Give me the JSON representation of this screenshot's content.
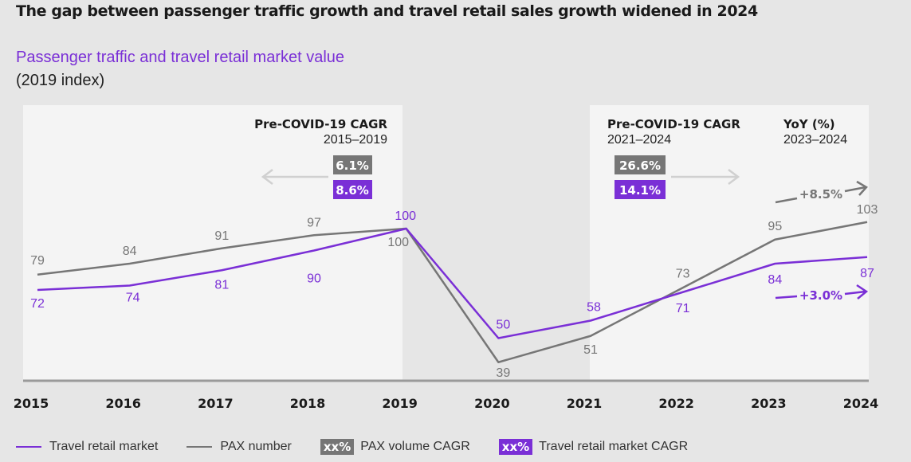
{
  "header": {
    "title": "The gap between passenger traffic growth and travel retail sales growth widened in 2024",
    "subtitle": "Passenger traffic and travel retail market value",
    "subtitle_unit": "(2019 index)"
  },
  "colors": {
    "retail": "#7a2fd6",
    "pax": "#767676",
    "panel": "#f4f4f4",
    "background": "#e6e6e6",
    "arrow_light": "#d0d0d0"
  },
  "panels": [
    {
      "heading": "Pre-COVID-19 CAGR",
      "period": "2015–2019",
      "pax_cagr": "6.1%",
      "retail_cagr": "8.6%",
      "arrow_direction": "left"
    },
    {
      "heading": "Pre-COVID-19 CAGR",
      "period": "2021–2024",
      "pax_cagr": "26.6%",
      "retail_cagr": "14.1%",
      "arrow_direction": "right"
    }
  ],
  "yoy": {
    "heading": "YoY (%)",
    "period": "2023–2024",
    "pax": "+8.5%",
    "retail": "+3.0%"
  },
  "chart_data": {
    "type": "line",
    "title": "The gap between passenger traffic growth and travel retail sales growth widened in 2024",
    "subtitle": "Passenger traffic and travel retail market value (2019 index)",
    "xlabel": "",
    "ylabel": "2019 index",
    "x": [
      "2015",
      "2016",
      "2017",
      "2018",
      "2019",
      "2020",
      "2021",
      "2022",
      "2023",
      "2024"
    ],
    "series": [
      {
        "name": "Travel retail market",
        "values": [
          72,
          74,
          81,
          90,
          100,
          50,
          58,
          71,
          84,
          87
        ]
      },
      {
        "name": "PAX number",
        "values": [
          79,
          84,
          91,
          97,
          100,
          39,
          51,
          73,
          95,
          103
        ]
      }
    ],
    "ylim": [
      30,
      150
    ],
    "grid": false,
    "shaded_periods": [
      [
        "2015",
        "2019"
      ],
      [
        "2021",
        "2024"
      ]
    ],
    "legend_position": "bottom"
  },
  "legend": [
    {
      "label": "Travel retail market",
      "type": "line",
      "series": "retail"
    },
    {
      "label": "PAX number",
      "type": "line",
      "series": "pax"
    },
    {
      "label": "PAX volume CAGR",
      "type": "box",
      "box_text": "xx%",
      "series": "pax"
    },
    {
      "label": "Travel retail market CAGR",
      "type": "box",
      "box_text": "xx%",
      "series": "retail"
    }
  ]
}
